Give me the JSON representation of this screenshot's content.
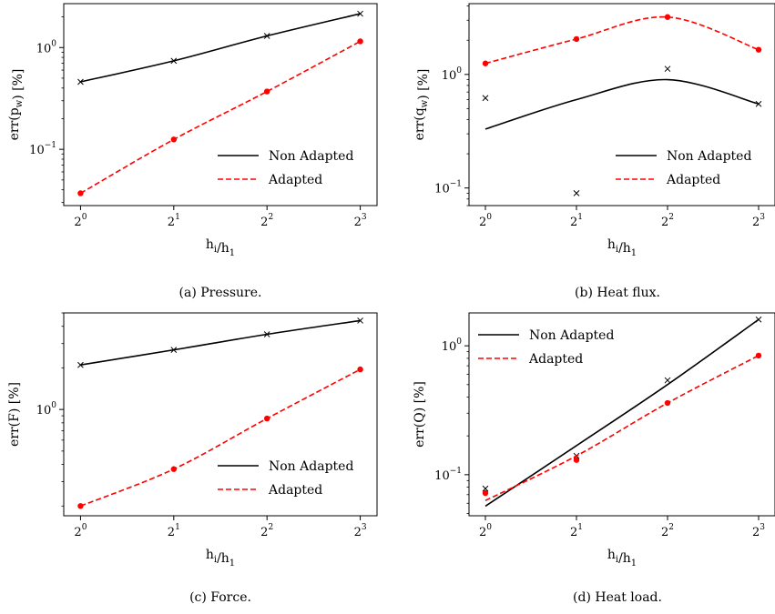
{
  "chart_data": [
    {
      "type": "line",
      "caption": "(a) Pressure.",
      "xlabel": "h_i/h_1",
      "ylabel": "err(p_w) [%]",
      "yscale": "log",
      "xscale": "log2",
      "x": [
        1,
        2,
        4,
        8
      ],
      "xtick_labels": [
        "2^0",
        "2^1",
        "2^2",
        "2^3"
      ],
      "ytick_labels": [
        "10^-1",
        "10^0"
      ],
      "ylim": [
        0.028,
        2.7
      ],
      "legend": "lower-right",
      "series": [
        {
          "name": "Non Adapted",
          "style": "solid",
          "color": "#000000",
          "marker": "x",
          "values": [
            0.46,
            0.74,
            1.3,
            2.15
          ],
          "curve": [
            0.46,
            0.74,
            1.3,
            2.15
          ]
        },
        {
          "name": "Adapted",
          "style": "dashed",
          "color": "#ff0000",
          "marker": "dot",
          "values": [
            0.037,
            0.125,
            0.37,
            1.15
          ],
          "curve": [
            0.037,
            0.125,
            0.37,
            1.15
          ]
        }
      ]
    },
    {
      "type": "line",
      "caption": "(b) Heat flux.",
      "xlabel": "h_i/h_1",
      "ylabel": "err(q_w) [%]",
      "yscale": "log",
      "xscale": "log2",
      "x": [
        1,
        2,
        4,
        8
      ],
      "xtick_labels": [
        "2^0",
        "2^1",
        "2^2",
        "2^3"
      ],
      "ytick_labels": [
        "10^-1",
        "10^0"
      ],
      "ylim": [
        0.07,
        4.2
      ],
      "legend": "lower-right",
      "series": [
        {
          "name": "Non Adapted",
          "style": "solid",
          "color": "#000000",
          "marker": "x",
          "values": [
            0.62,
            0.09,
            1.12,
            0.55
          ],
          "curve": [
            0.33,
            0.6,
            0.9,
            0.55
          ]
        },
        {
          "name": "Adapted",
          "style": "dashed",
          "color": "#ff0000",
          "marker": "dot",
          "values": [
            1.25,
            2.05,
            3.2,
            1.65
          ],
          "curve": [
            1.25,
            2.05,
            3.2,
            1.65
          ]
        }
      ]
    },
    {
      "type": "line",
      "caption": "(c) Force.",
      "xlabel": "h_i/h_1",
      "ylabel": "err(F) [%]",
      "yscale": "log",
      "xscale": "log2",
      "x": [
        1,
        2,
        4,
        8
      ],
      "xtick_labels": [
        "2^0",
        "2^1",
        "2^2",
        "2^3"
      ],
      "ytick_labels": [
        "10^0"
      ],
      "ylim": [
        0.17,
        5.0
      ],
      "legend": "lower-right",
      "series": [
        {
          "name": "Non Adapted",
          "style": "solid",
          "color": "#000000",
          "marker": "x",
          "values": [
            2.1,
            2.7,
            3.5,
            4.4
          ],
          "curve": [
            2.1,
            2.7,
            3.5,
            4.4
          ]
        },
        {
          "name": "Adapted",
          "style": "dashed",
          "color": "#ff0000",
          "marker": "dot",
          "values": [
            0.2,
            0.37,
            0.86,
            1.95
          ],
          "curve": [
            0.2,
            0.37,
            0.86,
            1.95
          ]
        }
      ]
    },
    {
      "type": "line",
      "caption": "(d) Heat load.",
      "xlabel": "h_i/h_1",
      "ylabel": "err(Q) [%]",
      "yscale": "log",
      "xscale": "log2",
      "x": [
        1,
        2,
        4,
        8
      ],
      "xtick_labels": [
        "2^0",
        "2^1",
        "2^2",
        "2^3"
      ],
      "ytick_labels": [
        "10^-1",
        "10^0"
      ],
      "ylim": [
        0.048,
        1.8
      ],
      "legend": "upper-left",
      "series": [
        {
          "name": "Non Adapted",
          "style": "solid",
          "color": "#000000",
          "marker": "x",
          "values": [
            0.078,
            0.14,
            0.54,
            1.6
          ],
          "curve": [
            0.057,
            0.168,
            0.5,
            1.6
          ]
        },
        {
          "name": "Adapted",
          "style": "dashed",
          "color": "#ff0000",
          "marker": "dot",
          "values": [
            0.072,
            0.13,
            0.36,
            0.84
          ],
          "curve": [
            0.063,
            0.14,
            0.36,
            0.84
          ]
        }
      ]
    }
  ]
}
